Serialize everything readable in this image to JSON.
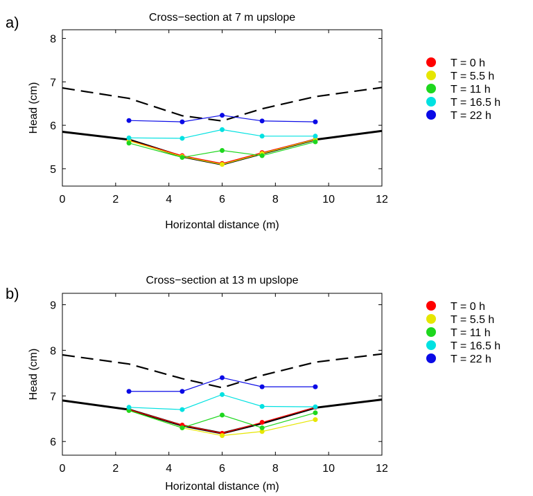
{
  "chart_data": [
    {
      "type": "line",
      "panel_label": "a)",
      "title": "Cross−section at 7 m upslope",
      "xlabel": "Horizontal distance (m)",
      "ylabel": "Head (cm)",
      "xlim": [
        0,
        12
      ],
      "ylim": [
        4.6,
        8.2
      ],
      "xticks": [
        0,
        2,
        4,
        6,
        8,
        10,
        12
      ],
      "yticks": [
        5,
        6,
        7,
        8
      ],
      "reference_lines": [
        {
          "style": "solid",
          "x": [
            0,
            2.5,
            4.5,
            6,
            7.5,
            9.5,
            12
          ],
          "y": [
            5.85,
            5.67,
            5.28,
            5.1,
            5.35,
            5.67,
            5.87
          ]
        },
        {
          "style": "dashed",
          "x": [
            0,
            2.5,
            4.5,
            6,
            7.5,
            9.5,
            12
          ],
          "y": [
            6.86,
            6.62,
            6.22,
            6.1,
            6.38,
            6.66,
            6.87
          ]
        }
      ],
      "series": [
        {
          "name": "T = 0 h",
          "color": "#ff0000",
          "x": [
            2.5,
            4.5,
            6,
            7.5,
            9.5
          ],
          "y": [
            5.65,
            5.3,
            5.12,
            5.37,
            5.68
          ]
        },
        {
          "name": "T = 5.5 h",
          "color": "#e6e600",
          "x": [
            2.5,
            4.5,
            6,
            7.5,
            9.5
          ],
          "y": [
            5.64,
            5.28,
            5.1,
            5.35,
            5.67
          ]
        },
        {
          "name": "T = 11 h",
          "color": "#1ed71e",
          "x": [
            2.5,
            4.5,
            6,
            7.5,
            9.5
          ],
          "y": [
            5.59,
            5.26,
            5.42,
            5.3,
            5.62
          ]
        },
        {
          "name": "T = 16.5 h",
          "color": "#00e1e1",
          "x": [
            2.5,
            4.5,
            6,
            7.5,
            9.5
          ],
          "y": [
            5.71,
            5.7,
            5.9,
            5.75,
            5.75
          ]
        },
        {
          "name": "T = 22 h",
          "color": "#0a0ae6",
          "x": [
            2.5,
            4.5,
            6,
            7.5,
            9.5
          ],
          "y": [
            6.11,
            6.08,
            6.23,
            6.1,
            6.08
          ]
        }
      ],
      "legend": "right"
    },
    {
      "type": "line",
      "panel_label": "b)",
      "title": "Cross−section at 13 m upslope",
      "xlabel": "Horizontal distance (m)",
      "ylabel": "Head (cm)",
      "xlim": [
        0,
        12
      ],
      "ylim": [
        5.7,
        9.25
      ],
      "xticks": [
        0,
        2,
        4,
        6,
        8,
        10,
        12
      ],
      "yticks": [
        6,
        7,
        8,
        9
      ],
      "reference_lines": [
        {
          "style": "solid",
          "x": [
            0,
            2.5,
            4.5,
            6,
            7.5,
            9.5,
            12
          ],
          "y": [
            6.9,
            6.7,
            6.35,
            6.18,
            6.4,
            6.74,
            6.92
          ]
        },
        {
          "style": "dashed",
          "x": [
            0,
            2.5,
            4.5,
            6,
            7.5,
            9.5,
            12
          ],
          "y": [
            7.9,
            7.7,
            7.38,
            7.18,
            7.45,
            7.74,
            7.92
          ]
        }
      ],
      "series": [
        {
          "name": "T = 0 h",
          "color": "#ff0000",
          "x": [
            2.5,
            4.5,
            6,
            7.5,
            9.5
          ],
          "y": [
            6.7,
            6.36,
            6.18,
            6.42,
            6.75
          ]
        },
        {
          "name": "T = 5.5 h",
          "color": "#e6e600",
          "x": [
            2.5,
            4.5,
            6,
            7.5,
            9.5
          ],
          "y": [
            6.68,
            6.3,
            6.13,
            6.22,
            6.48
          ]
        },
        {
          "name": "T = 11 h",
          "color": "#1ed71e",
          "x": [
            2.5,
            4.5,
            6,
            7.5,
            9.5
          ],
          "y": [
            6.68,
            6.3,
            6.58,
            6.3,
            6.63
          ]
        },
        {
          "name": "T = 16.5 h",
          "color": "#00e1e1",
          "x": [
            2.5,
            4.5,
            6,
            7.5,
            9.5
          ],
          "y": [
            6.75,
            6.7,
            7.03,
            6.77,
            6.76
          ]
        },
        {
          "name": "T = 22 h",
          "color": "#0a0ae6",
          "x": [
            2.5,
            4.5,
            6,
            7.5,
            9.5
          ],
          "y": [
            7.1,
            7.1,
            7.4,
            7.2,
            7.2
          ]
        }
      ],
      "legend": "right"
    }
  ]
}
